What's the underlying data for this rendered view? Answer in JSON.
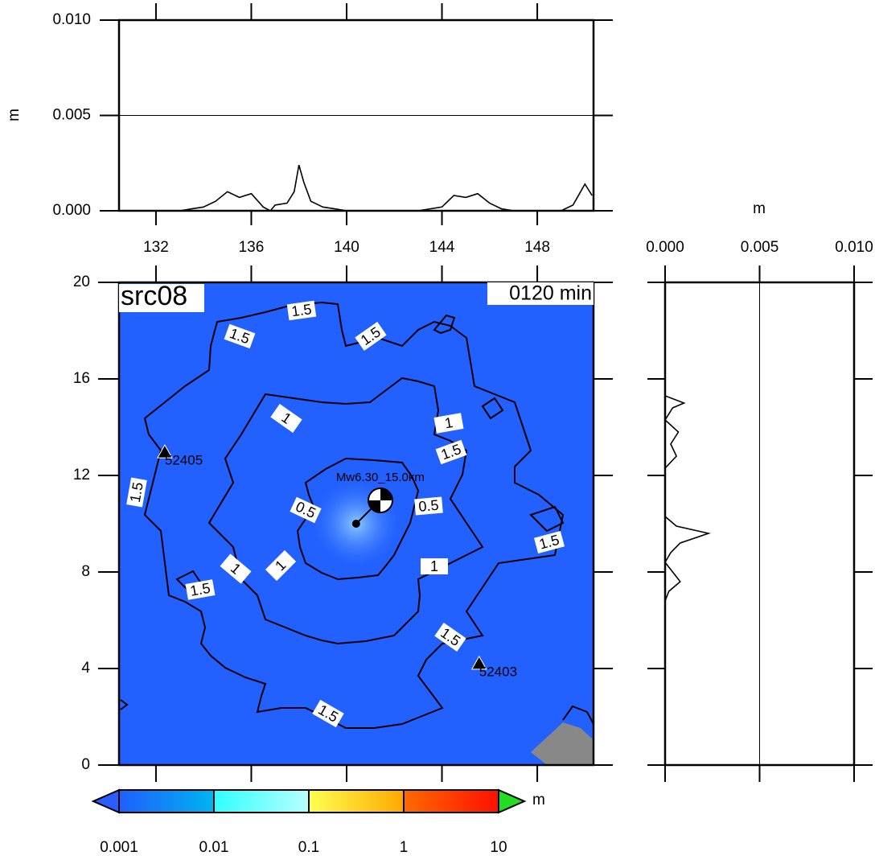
{
  "chart_data": [
    {
      "type": "line",
      "ylabel": "m",
      "color": "#000000",
      "xlim": [
        130.45,
        150.36
      ],
      "xticks": [
        132,
        136,
        140,
        144,
        148
      ],
      "ylim": [
        0,
        0.01
      ],
      "yticks": [
        {
          "value": 0,
          "label": "0.000"
        },
        {
          "value": 0.005,
          "label": "0.005"
        },
        {
          "value": 0.01,
          "label": "0.010"
        }
      ],
      "grid": true,
      "x": [
        130.5,
        133,
        133.5,
        134,
        134.5,
        135,
        135.5,
        136,
        136.5,
        136.8,
        137,
        137.5,
        137.8,
        138,
        138.2,
        138.5,
        139,
        139.5,
        140,
        143,
        144,
        144.5,
        145,
        145.5,
        146,
        146.5,
        147,
        149,
        149.5,
        150,
        150.3
      ],
      "values": [
        0,
        0,
        0.0001,
        0.0002,
        0.0005,
        0.001,
        0.0007,
        0.0009,
        0.0002,
        0,
        0.0003,
        0.0004,
        0.001,
        0.0024,
        0.0015,
        0.0005,
        0.0002,
        0.0001,
        0,
        0,
        0.0002,
        0.0008,
        0.0007,
        0.0009,
        0.0004,
        0.0001,
        0,
        0,
        0.0003,
        0.0014,
        0.0008
      ]
    },
    {
      "type": "map",
      "title": "src08",
      "time_label": "0120 min",
      "fill_color": "#2260ff",
      "land_color": "#888888",
      "xlim": [
        130.45,
        150.36
      ],
      "xticks": [
        132,
        136,
        140,
        144,
        148
      ],
      "ylim": [
        0,
        20
      ],
      "yticks": [
        0,
        4,
        8,
        12,
        16,
        20
      ],
      "epicenter": {
        "label": "Mw6.30_15.0km",
        "x": 140.4,
        "y": 10.0
      },
      "stations": [
        {
          "name": "52405",
          "x": 132.37,
          "y": 12.93
        },
        {
          "name": "52403",
          "x": 145.56,
          "y": 4.17
        }
      ],
      "contour_labels": [
        "1.5",
        "1.5",
        "1.5",
        "1",
        "1",
        "1.5",
        "1.5",
        "0.5",
        "0.5",
        "1.5",
        "1",
        "1",
        "1",
        "1.5",
        "1.5",
        "1.5"
      ]
    },
    {
      "type": "line",
      "xlabel": "m",
      "orientation": "vertical",
      "color": "#000000",
      "xlim": [
        0,
        0.01
      ],
      "xticks": [
        {
          "value": 0,
          "label": "0.000"
        },
        {
          "value": 0.005,
          "label": "0.005"
        },
        {
          "value": 0.01,
          "label": "0.010"
        }
      ],
      "ylim": [
        0,
        20
      ],
      "yticks": [
        0,
        4,
        8,
        12,
        16,
        20
      ],
      "grid": true,
      "y": [
        0,
        6.8,
        7.2,
        7.6,
        8.0,
        8.4,
        8.8,
        9.2,
        9.6,
        9.9,
        10.3,
        12.3,
        12.8,
        13.3,
        13.8,
        14.3,
        14.8,
        15.0,
        15.3,
        20
      ],
      "values": [
        0,
        0,
        0.0002,
        0.0008,
        0.0004,
        0,
        0.0003,
        0.0008,
        0.0023,
        0.0006,
        0,
        0,
        0.0006,
        0.0003,
        0.0007,
        0,
        0.0004,
        0.001,
        0,
        0
      ]
    },
    {
      "type": "colorbar",
      "unit": "m",
      "log": true,
      "lim": [
        0.001,
        10
      ],
      "ticks": [
        0.001,
        0.01,
        0.1,
        1,
        10
      ],
      "colors": [
        "#1f5fff",
        "#00b4f0",
        "#30ffff",
        "#b8ffff",
        "#ffff50",
        "#ffa800",
        "#ff6a00",
        "#ff1000"
      ],
      "under_color": "#2a5cff",
      "over_color": "#22dd22"
    }
  ]
}
